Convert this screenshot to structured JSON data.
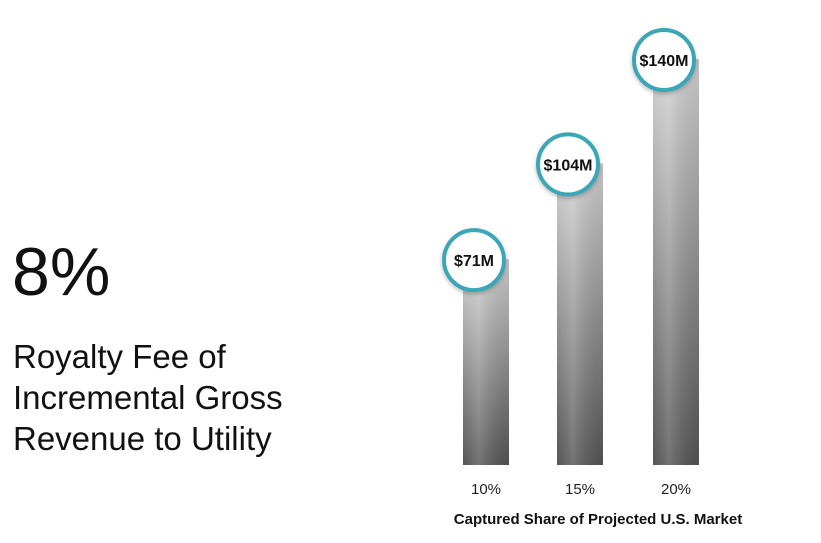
{
  "headline": {
    "value": "8%",
    "description_lines": [
      "Royalty Fee of",
      "Incremental Gross",
      "Revenue to Utility"
    ]
  },
  "colors": {
    "circle_stroke": "#3aa6b5",
    "bar_light": "#d4d4d4",
    "bar_dark": "#555555"
  },
  "chart_data": {
    "type": "bar",
    "categories": [
      "10%",
      "15%",
      "20%"
    ],
    "values": [
      71,
      104,
      140
    ],
    "data_labels": [
      "$71M",
      "$104M",
      "$140M"
    ],
    "title": "",
    "xlabel": "Captured Share of Projected U.S. Market",
    "ylabel": "",
    "ylim": [
      0,
      150
    ],
    "grid": false,
    "legend": "none"
  }
}
